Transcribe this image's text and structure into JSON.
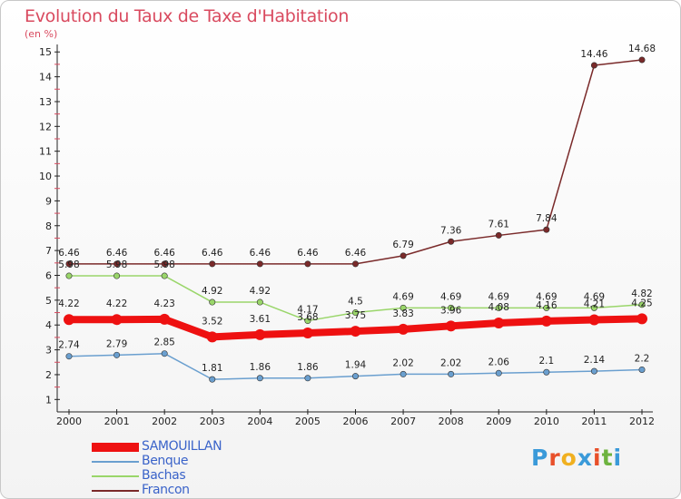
{
  "title": "Evolution du Taux de Taxe d'Habitation",
  "unit_label": "(en %)",
  "brand": {
    "text": "Proxiti",
    "letter_colors": [
      "#3a9ad9",
      "#e8502a",
      "#f0b020",
      "#3a9ad9",
      "#e8502a",
      "#6db33f",
      "#3a9ad9"
    ]
  },
  "chart_data": {
    "type": "line",
    "x": [
      2000,
      2001,
      2002,
      2003,
      2004,
      2005,
      2006,
      2007,
      2008,
      2009,
      2010,
      2011,
      2012
    ],
    "ylim": [
      0.5,
      15.3
    ],
    "yticks": [
      1,
      2,
      3,
      4,
      5,
      6,
      7,
      8,
      9,
      10,
      11,
      12,
      13,
      14,
      15
    ],
    "grid": false,
    "legend_position": "bottom-left",
    "series": [
      {
        "name": "Francon",
        "color": "#7a2a2a",
        "values": [
          6.46,
          6.46,
          6.46,
          6.46,
          6.46,
          6.46,
          6.46,
          6.79,
          7.36,
          7.61,
          7.84,
          14.46,
          14.68
        ],
        "labels": [
          "6.46",
          "6.46",
          "6.46",
          "6.46",
          "6.46",
          "6.46",
          "6.46",
          "6.79",
          "7.36",
          "7.61",
          "7.84",
          "14.46",
          "14.68"
        ]
      },
      {
        "name": "Bachas",
        "color": "#9ad66a",
        "values": [
          5.98,
          5.98,
          5.98,
          4.92,
          4.92,
          4.17,
          4.5,
          4.69,
          4.69,
          4.69,
          4.69,
          4.69,
          4.82
        ],
        "labels": [
          "5.98",
          "5.98",
          "5.98",
          "4.92",
          "4.92",
          "4.17",
          "4.5",
          "4.69",
          "4.69",
          "4.69",
          "4.69",
          "4.69",
          "4.82"
        ]
      },
      {
        "name": "Benque",
        "color": "#6a9fcf",
        "values": [
          2.74,
          2.79,
          2.85,
          1.81,
          1.86,
          1.86,
          1.94,
          2.02,
          2.02,
          2.06,
          2.1,
          2.14,
          2.2
        ],
        "labels": [
          "2.74",
          "2.79",
          "2.85",
          "1.81",
          "1.86",
          "1.86",
          "1.94",
          "2.02",
          "2.02",
          "2.06",
          "2.1",
          "2.14",
          "2.2"
        ]
      },
      {
        "name": "SAMOUILLAN",
        "color": "#ee1111",
        "values": [
          4.22,
          4.22,
          4.23,
          3.52,
          3.61,
          3.68,
          3.75,
          3.83,
          3.96,
          4.08,
          4.16,
          4.21,
          4.25
        ],
        "labels": [
          "4.22",
          "4.22",
          "4.23",
          "3.52",
          "3.61",
          "3.68",
          "3.75",
          "3.83",
          "3.96",
          "4.08",
          "4.16",
          "4.21",
          "4.25"
        ]
      }
    ]
  },
  "legend": [
    {
      "label": "SAMOUILLAN",
      "color": "#ee1111"
    },
    {
      "label": "Benque",
      "color": "#6a9fcf"
    },
    {
      "label": "Bachas",
      "color": "#9ad66a"
    },
    {
      "label": "Francon",
      "color": "#7a2a2a"
    }
  ]
}
